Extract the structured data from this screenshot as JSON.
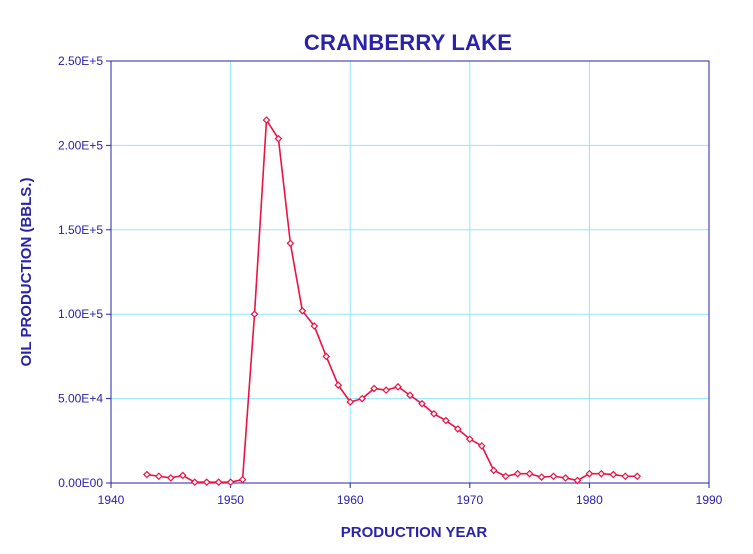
{
  "chart_data": {
    "type": "line",
    "title": "CRANBERRY LAKE",
    "xlabel": "PRODUCTION YEAR",
    "ylabel": "OIL PRODUCTION (BBLS.)",
    "xlim": [
      1940,
      1990
    ],
    "ylim": [
      0,
      250000
    ],
    "x_ticks": [
      1940,
      1950,
      1960,
      1970,
      1980,
      1990
    ],
    "x_tick_labels": [
      "1940",
      "1950",
      "1960",
      "1970",
      "1980",
      "1990"
    ],
    "y_ticks": [
      0,
      50000,
      100000,
      150000,
      200000,
      250000
    ],
    "y_tick_labels": [
      "0.00E00",
      "5.00E+4",
      "1.00E+5",
      "1.50E+5",
      "2.00E+5",
      "2.50E+5"
    ],
    "grid": true,
    "colors": {
      "series": "#ee1144",
      "grid": "#8fe6ff",
      "axis": "#2a22a8",
      "text": "#2a22a8"
    },
    "series": [
      {
        "marker": "diamond",
        "x": [
          1943,
          1944,
          1945,
          1946,
          1947,
          1948,
          1949,
          1950,
          1951,
          1952,
          1953,
          1954,
          1955,
          1956,
          1957,
          1958,
          1959,
          1960,
          1961,
          1962,
          1963,
          1964,
          1965,
          1966,
          1967,
          1968,
          1969,
          1970,
          1971,
          1972,
          1973,
          1974,
          1975,
          1976,
          1977,
          1978,
          1979,
          1980,
          1981,
          1982,
          1983,
          1984
        ],
        "y": [
          5000,
          4000,
          3000,
          4500,
          500,
          500,
          500,
          500,
          2000,
          100000,
          215000,
          204000,
          142000,
          102000,
          93000,
          75000,
          58000,
          48000,
          50000,
          56000,
          55000,
          57000,
          52000,
          47000,
          41000,
          37000,
          32000,
          26000,
          22000,
          7500,
          4000,
          5500,
          5500,
          3500,
          4000,
          3000,
          1500,
          5500,
          5500,
          5000,
          4000,
          4000
        ]
      }
    ]
  }
}
